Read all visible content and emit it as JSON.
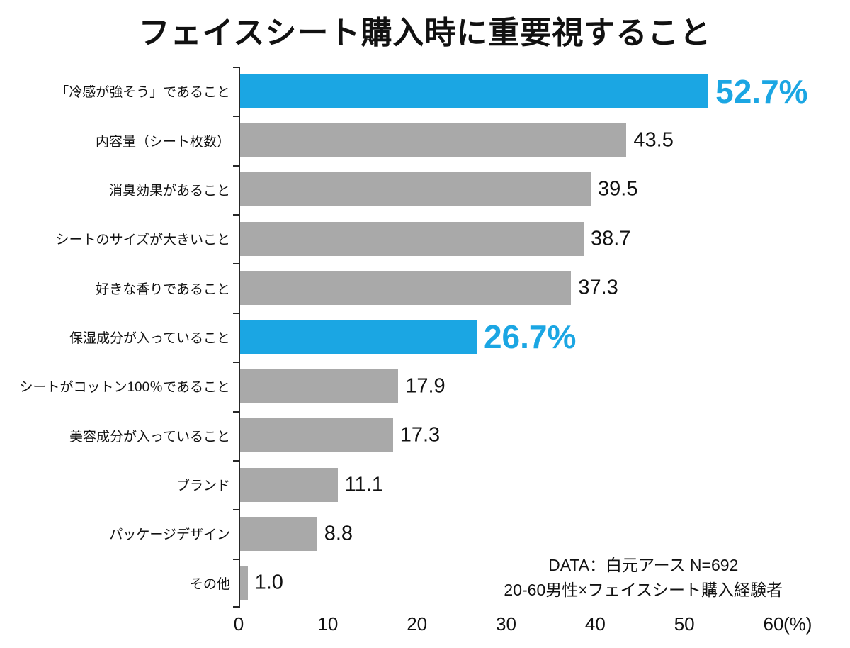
{
  "title": "フェイスシート購入時に重要視すること",
  "chart_data": {
    "type": "bar",
    "orientation": "horizontal",
    "title": "フェイスシート購入時に重要視すること",
    "categories": [
      "「冷感が強そう」であること",
      "内容量（シート枚数）",
      "消臭効果があること",
      "シートのサイズが大きいこと",
      "好きな香りであること",
      "保湿成分が入っていること",
      "シートがコットン100％であること",
      "美容成分が入っていること",
      "ブランド",
      "パッケージデザイン",
      "その他"
    ],
    "values": [
      52.7,
      43.5,
      39.5,
      38.7,
      37.3,
      26.7,
      17.9,
      17.3,
      11.1,
      8.8,
      1.0
    ],
    "highlighted_indices": [
      0,
      5
    ],
    "value_suffix_highlighted": "%",
    "xlim": [
      0,
      60
    ],
    "xticks": [
      0,
      10,
      20,
      30,
      40,
      50,
      60
    ],
    "x_unit": "(%)",
    "grid": false,
    "legend": "none",
    "colors": {
      "highlight": "#1BA6E3",
      "default": "#A9A9A9",
      "axis": "#262626",
      "text": "#111111"
    }
  },
  "annotation": {
    "line1": "DATA：白元アース  N=692",
    "line2": "20-60男性×フェイスシート購入経験者"
  }
}
